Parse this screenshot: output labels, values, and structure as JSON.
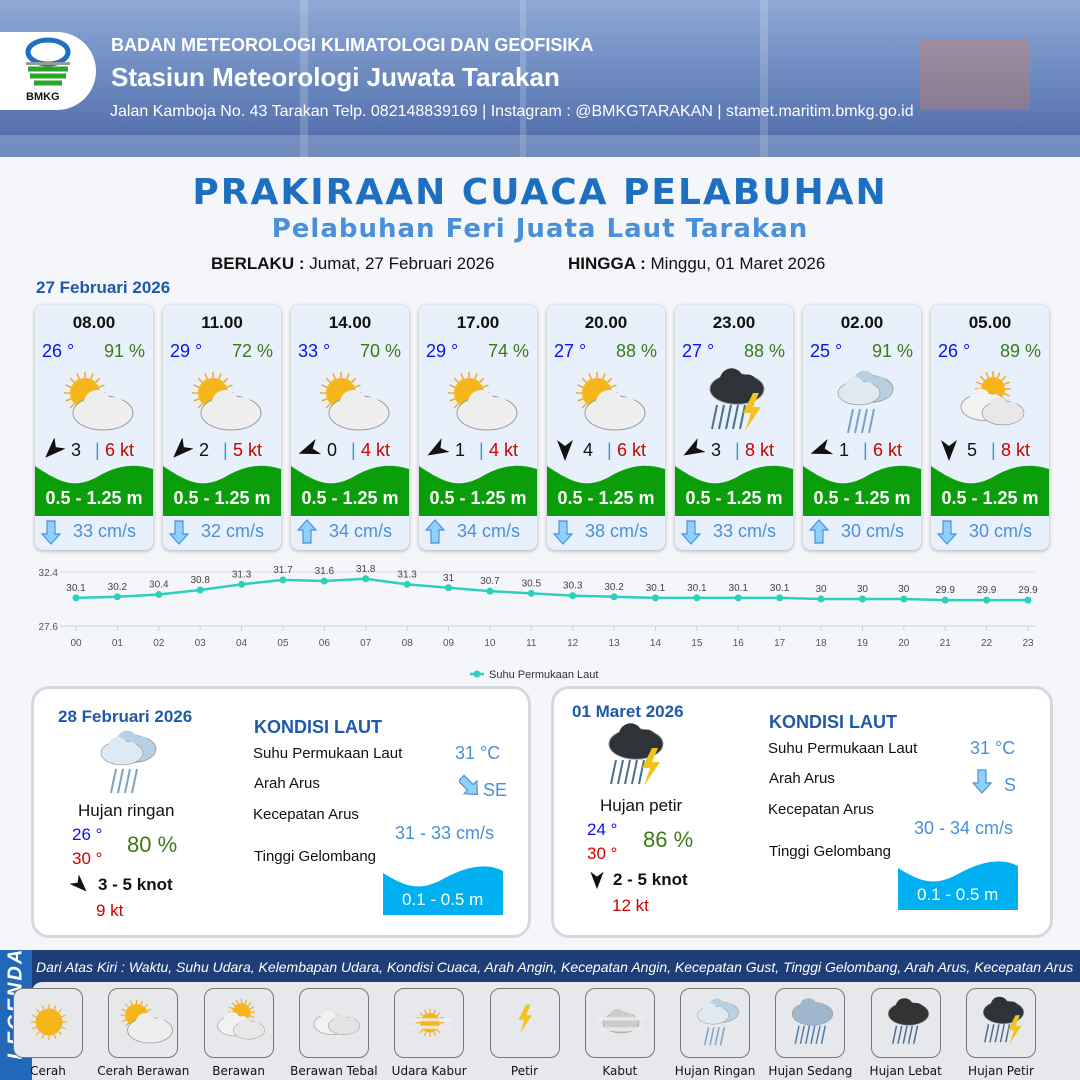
{
  "header": {
    "org": "BADAN METEOROLOGI KLIMATOLOGI DAN GEOFISIKA",
    "station": "Stasiun Meteorologi Juwata Tarakan",
    "contact": "Jalan Kamboja No. 43 Tarakan  Telp. 082148839169 | Instagram : @BMKGTARAKAN | stamet.maritim.bmkg.go.id",
    "logo_text": "BMKG"
  },
  "title": "PRAKIRAAN CUACA PELABUHAN",
  "subtitle": "Pelabuhan Feri Juata Laut Tarakan",
  "validity": {
    "from_label": "BERLAKU :",
    "from": "Jumat, 27 Februari 2026",
    "to_label": "HINGGA :",
    "to": "Minggu, 01 Maret 2026"
  },
  "day1_date": "27 Februari 2026",
  "cards": [
    {
      "time": "08.00",
      "temp": "26 °",
      "hum": "91 %",
      "icon": "cerah-berawan",
      "wind_dir_deg": 225,
      "wind": "3",
      "gust": "6 kt",
      "wave": "0.5 - 1.25 m",
      "current_dir": "down",
      "current": "33 cm/s"
    },
    {
      "time": "11.00",
      "temp": "29 °",
      "hum": "72 %",
      "icon": "cerah-berawan",
      "wind_dir_deg": 225,
      "wind": "2",
      "gust": "5 kt",
      "wave": "0.5 - 1.25 m",
      "current_dir": "down",
      "current": "32 cm/s"
    },
    {
      "time": "14.00",
      "temp": "33 °",
      "hum": "70 %",
      "icon": "cerah-berawan",
      "wind_dir_deg": 250,
      "wind": "0",
      "gust": "4 kt",
      "wave": "0.5 - 1.25 m",
      "current_dir": "up",
      "current": "34 cm/s"
    },
    {
      "time": "17.00",
      "temp": "29 °",
      "hum": "74 %",
      "icon": "cerah-berawan",
      "wind_dir_deg": 240,
      "wind": "1",
      "gust": "4 kt",
      "wave": "0.5 - 1.25 m",
      "current_dir": "up",
      "current": "34 cm/s"
    },
    {
      "time": "20.00",
      "temp": "27 °",
      "hum": "88 %",
      "icon": "cerah-berawan",
      "wind_dir_deg": 180,
      "wind": "4",
      "gust": "6 kt",
      "wave": "0.5 - 1.25 m",
      "current_dir": "down",
      "current": "38 cm/s"
    },
    {
      "time": "23.00",
      "temp": "27 °",
      "hum": "88 %",
      "icon": "hujan-petir",
      "wind_dir_deg": 240,
      "wind": "3",
      "gust": "8 kt",
      "wave": "0.5 - 1.25 m",
      "current_dir": "down",
      "current": "33 cm/s"
    },
    {
      "time": "02.00",
      "temp": "25 °",
      "hum": "91 %",
      "icon": "hujan-ringan",
      "wind_dir_deg": 250,
      "wind": "1",
      "gust": "6 kt",
      "wave": "0.5 - 1.25 m",
      "current_dir": "up",
      "current": "30 cm/s"
    },
    {
      "time": "05.00",
      "temp": "26 °",
      "hum": "89 %",
      "icon": "berawan",
      "wind_dir_deg": 180,
      "wind": "5",
      "gust": "8 kt",
      "wave": "0.5 - 1.25 m",
      "current_dir": "down",
      "current": "30 cm/s"
    }
  ],
  "chart_data": {
    "type": "line",
    "x": [
      "00",
      "01",
      "02",
      "03",
      "04",
      "05",
      "06",
      "07",
      "08",
      "09",
      "10",
      "11",
      "12",
      "13",
      "14",
      "15",
      "16",
      "17",
      "18",
      "19",
      "20",
      "21",
      "22",
      "23"
    ],
    "series": [
      {
        "name": "Suhu Permukaan Laut",
        "values": [
          30.1,
          30.2,
          30.4,
          30.8,
          31.3,
          31.7,
          31.6,
          31.8,
          31.3,
          31.0,
          30.7,
          30.5,
          30.3,
          30.2,
          30.1,
          30.1,
          30.1,
          30.1,
          30.0,
          30.0,
          30.0,
          29.9,
          29.9,
          29.9
        ]
      }
    ],
    "yticks": [
      "32.4",
      "27.6"
    ],
    "ylim": [
      27.6,
      32.4
    ],
    "color": "#2ecfbf",
    "legend": "bottom"
  },
  "days": [
    {
      "date": "28 Februari 2026",
      "icon": "hujan-ringan",
      "condition": "Hujan ringan",
      "tmin": "26 °",
      "tmax": "30 °",
      "hum": "80 %",
      "wind_dir_deg": 135,
      "wind": "3  - 5 knot",
      "gust": "9 kt",
      "sea": {
        "title": "KONDISI LAUT",
        "sst_label": "Suhu Permukaan Laut",
        "sst": "31 °C",
        "dir_label": "Arah Arus",
        "dir": "SE",
        "speed_label": "Kecepatan Arus",
        "speed": "31 - 33 cm/s",
        "wave_label": "Tinggi Gelombang",
        "wave": "0.1 - 0.5 m"
      }
    },
    {
      "date": "01 Maret 2026",
      "icon": "hujan-petir",
      "condition": "Hujan petir",
      "tmin": "24 °",
      "tmax": "30 °",
      "hum": "86 %",
      "wind_dir_deg": 180,
      "wind": "2  - 5 knot",
      "gust": "12 kt",
      "sea": {
        "title": "KONDISI LAUT",
        "sst_label": "Suhu Permukaan Laut",
        "sst": "31 °C",
        "dir_label": "Arah Arus",
        "dir": "S",
        "speed_label": "Kecepatan Arus",
        "speed": "30 - 34 cm/s",
        "wave_label": "Tinggi Gelombang",
        "wave": "0.1 - 0.5 m"
      }
    }
  ],
  "legend": {
    "title": "LEGENDA",
    "description": "Dari Atas Kiri : Waktu, Suhu Udara, Kelembapan Udara, Kondisi Cuaca, Arah Angin, Kecepatan Angin, Kecepatan Gust, Tinggi Gelombang, Arah Arus, Kecepatan Arus",
    "items": [
      {
        "label": "Cerah",
        "icon": "cerah"
      },
      {
        "label": "Cerah Berawan",
        "icon": "cerah-berawan"
      },
      {
        "label": "Berawan",
        "icon": "berawan"
      },
      {
        "label": "Berawan Tebal",
        "icon": "berawan-tebal"
      },
      {
        "label": "Udara Kabur",
        "icon": "udara-kabur"
      },
      {
        "label": "Petir",
        "icon": "petir"
      },
      {
        "label": "Kabut",
        "icon": "kabut"
      },
      {
        "label": "Hujan Ringan",
        "icon": "hujan-ringan"
      },
      {
        "label": "Hujan Sedang",
        "icon": "hujan-sedang"
      },
      {
        "label": "Hujan Lebat",
        "icon": "hujan-lebat"
      },
      {
        "label": "Hujan Petir",
        "icon": "hujan-petir"
      }
    ]
  },
  "colors": {
    "wave_green": "#0a9e0a",
    "wave_blue": "#00b0f0",
    "temp": "#0a12f0",
    "hum": "#3d7a14",
    "gust": "#c00000",
    "current": "#4a90d9",
    "brand": "#1e5aa8"
  }
}
